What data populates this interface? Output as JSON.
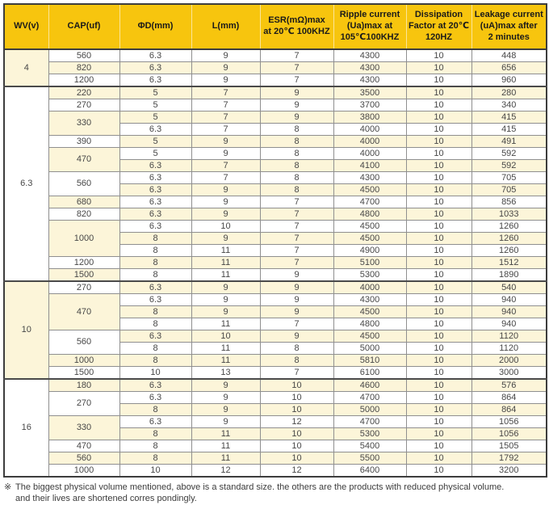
{
  "table": {
    "columns": [
      "WV(v)",
      "CAP(uf)",
      "ΦD(mm)",
      "L(mm)",
      "ESR(mΩ)max\nat 20℃ 100KHZ",
      "Ripple current\n(Ua)max at\n105℃100KHZ",
      "Dissipation\nFactor at 20℃\n120HZ",
      "Leakage current\n(uA)max after\n2 minutes"
    ],
    "groups": [
      {
        "wv": "4",
        "caps": [
          {
            "cap": "560",
            "rows": [
              [
                "6.3",
                "9",
                "7",
                "4300",
                "10",
                "448"
              ]
            ]
          },
          {
            "cap": "820",
            "rows": [
              [
                "6.3",
                "9",
                "7",
                "4300",
                "10",
                "656"
              ]
            ]
          },
          {
            "cap": "1200",
            "rows": [
              [
                "6.3",
                "9",
                "7",
                "4300",
                "10",
                "960"
              ]
            ]
          }
        ]
      },
      {
        "wv": "6.3",
        "caps": [
          {
            "cap": "220",
            "rows": [
              [
                "5",
                "7",
                "9",
                "3500",
                "10",
                "280"
              ]
            ]
          },
          {
            "cap": "270",
            "rows": [
              [
                "5",
                "7",
                "9",
                "3700",
                "10",
                "340"
              ]
            ]
          },
          {
            "cap": "330",
            "rows": [
              [
                "5",
                "7",
                "9",
                "3800",
                "10",
                "415"
              ],
              [
                "6.3",
                "7",
                "8",
                "4000",
                "10",
                "415"
              ]
            ]
          },
          {
            "cap": "390",
            "rows": [
              [
                "5",
                "9",
                "8",
                "4000",
                "10",
                "491"
              ]
            ]
          },
          {
            "cap": "470",
            "rows": [
              [
                "5",
                "9",
                "8",
                "4000",
                "10",
                "592"
              ],
              [
                "6.3",
                "7",
                "8",
                "4100",
                "10",
                "592"
              ]
            ]
          },
          {
            "cap": "560",
            "rows": [
              [
                "6.3",
                "7",
                "8",
                "4300",
                "10",
                "705"
              ],
              [
                "6.3",
                "9",
                "8",
                "4500",
                "10",
                "705"
              ]
            ]
          },
          {
            "cap": "680",
            "rows": [
              [
                "6.3",
                "9",
                "7",
                "4700",
                "10",
                "856"
              ]
            ]
          },
          {
            "cap": "820",
            "rows": [
              [
                "6.3",
                "9",
                "7",
                "4800",
                "10",
                "1033"
              ]
            ]
          },
          {
            "cap": "1000",
            "rows": [
              [
                "6.3",
                "10",
                "7",
                "4500",
                "10",
                "1260"
              ],
              [
                "8",
                "9",
                "7",
                "4500",
                "10",
                "1260"
              ],
              [
                "8",
                "11",
                "7",
                "4900",
                "10",
                "1260"
              ]
            ]
          },
          {
            "cap": "1200",
            "rows": [
              [
                "8",
                "11",
                "7",
                "5100",
                "10",
                "1512"
              ]
            ]
          },
          {
            "cap": "1500",
            "rows": [
              [
                "8",
                "11",
                "9",
                "5300",
                "10",
                "1890"
              ]
            ]
          }
        ]
      },
      {
        "wv": "10",
        "caps": [
          {
            "cap": "270",
            "rows": [
              [
                "6.3",
                "9",
                "9",
                "4000",
                "10",
                "540"
              ]
            ]
          },
          {
            "cap": "470",
            "rows": [
              [
                "6.3",
                "9",
                "9",
                "4300",
                "10",
                "940"
              ],
              [
                "8",
                "9",
                "9",
                "4500",
                "10",
                "940"
              ],
              [
                "8",
                "11",
                "7",
                "4800",
                "10",
                "940"
              ]
            ]
          },
          {
            "cap": "560",
            "rows": [
              [
                "6.3",
                "10",
                "9",
                "4500",
                "10",
                "1120"
              ],
              [
                "8",
                "11",
                "8",
                "5000",
                "10",
                "1120"
              ]
            ]
          },
          {
            "cap": "1000",
            "rows": [
              [
                "8",
                "11",
                "8",
                "5810",
                "10",
                "2000"
              ]
            ]
          },
          {
            "cap": "1500",
            "rows": [
              [
                "10",
                "13",
                "7",
                "6100",
                "10",
                "3000"
              ]
            ]
          }
        ]
      },
      {
        "wv": "16",
        "caps": [
          {
            "cap": "180",
            "rows": [
              [
                "6.3",
                "9",
                "10",
                "4600",
                "10",
                "576"
              ]
            ]
          },
          {
            "cap": "270",
            "rows": [
              [
                "6.3",
                "9",
                "10",
                "4700",
                "10",
                "864"
              ],
              [
                "8",
                "9",
                "10",
                "5000",
                "10",
                "864"
              ]
            ]
          },
          {
            "cap": "330",
            "rows": [
              [
                "6.3",
                "9",
                "12",
                "4700",
                "10",
                "1056"
              ],
              [
                "8",
                "11",
                "10",
                "5300",
                "10",
                "1056"
              ]
            ]
          },
          {
            "cap": "470",
            "rows": [
              [
                "8",
                "11",
                "10",
                "5400",
                "10",
                "1505"
              ]
            ]
          },
          {
            "cap": "560",
            "rows": [
              [
                "8",
                "11",
                "10",
                "5500",
                "10",
                "1792"
              ]
            ]
          },
          {
            "cap": "1000",
            "rows": [
              [
                "10",
                "12",
                "12",
                "6400",
                "10",
                "3200"
              ]
            ]
          }
        ]
      }
    ]
  },
  "footnote": {
    "marker": "※",
    "text": "The biggest physical volume mentioned, above is a standard size. the others are the products with reduced physical volume.\nand their lives are shortened corres pondingly."
  },
  "colors": {
    "header_yellow": "#f7c50e",
    "row_cream": "#fcf5d9",
    "row_white": "#ffffff",
    "grid_gray": "#8f8f8f",
    "outline_dark": "#3d3d3d"
  }
}
